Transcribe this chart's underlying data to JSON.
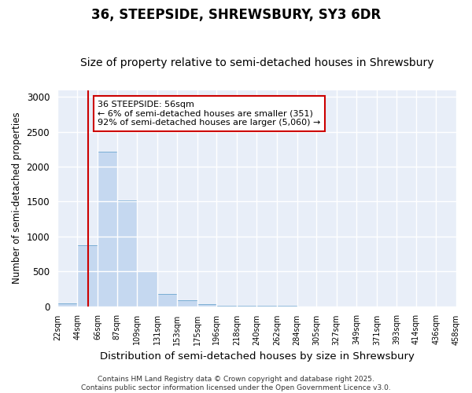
{
  "title": "36, STEEPSIDE, SHREWSBURY, SY3 6DR",
  "subtitle": "Size of property relative to semi-detached houses in Shrewsbury",
  "xlabel": "Distribution of semi-detached houses by size in Shrewsbury",
  "ylabel": "Number of semi-detached properties",
  "bar_edges": [
    22,
    44,
    66,
    87,
    109,
    131,
    153,
    175,
    196,
    218,
    240,
    262,
    284,
    305,
    327,
    349,
    371,
    393,
    414,
    436,
    458
  ],
  "bar_heights": [
    40,
    880,
    2220,
    1520,
    500,
    180,
    90,
    30,
    10,
    5,
    3,
    2,
    0,
    0,
    0,
    0,
    0,
    0,
    0,
    0
  ],
  "bar_color": "#c5d8f0",
  "bar_edge_color": "#7aadd4",
  "ylim": [
    0,
    3100
  ],
  "yticks": [
    0,
    500,
    1000,
    1500,
    2000,
    2500,
    3000
  ],
  "property_size": 56,
  "vline_color": "#cc0000",
  "annotation_text": "36 STEEPSIDE: 56sqm\n← 6% of semi-detached houses are smaller (351)\n92% of semi-detached houses are larger (5,060) →",
  "annotation_box_color": "#ffffff",
  "annotation_box_edge": "#cc0000",
  "footer_line1": "Contains HM Land Registry data © Crown copyright and database right 2025.",
  "footer_line2": "Contains public sector information licensed under the Open Government Licence v3.0.",
  "bg_color": "#ffffff",
  "plot_bg_color": "#e8eef8",
  "grid_color": "#ffffff",
  "title_fontsize": 12,
  "subtitle_fontsize": 10,
  "tick_label_fontsize": 7,
  "ylabel_fontsize": 8.5,
  "xlabel_fontsize": 9.5,
  "annotation_fontsize": 8,
  "footer_fontsize": 6.5
}
